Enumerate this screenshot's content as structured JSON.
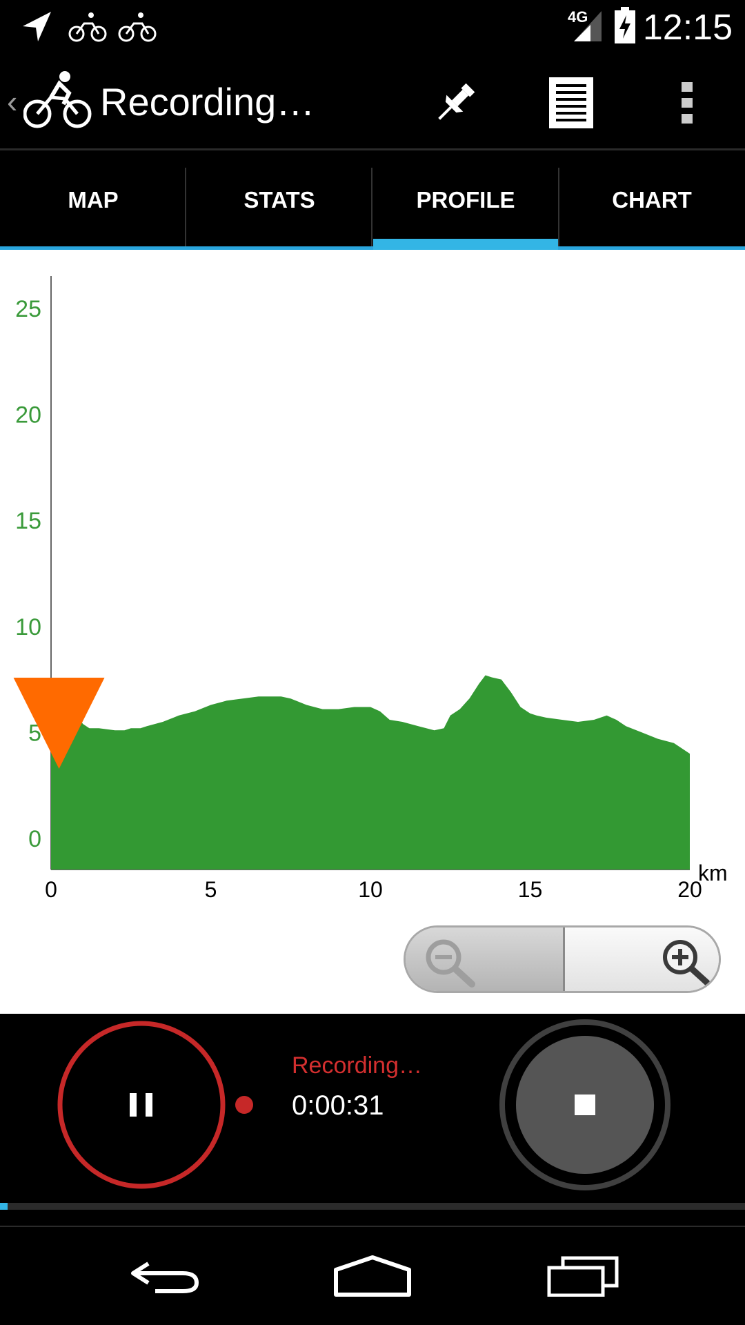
{
  "status_bar": {
    "time": "12:15",
    "network": "4G",
    "icons": [
      "location-arrow-icon",
      "bike-notification-icon",
      "bike-notification-icon",
      "signal-icon",
      "battery-charging-icon"
    ]
  },
  "action_bar": {
    "title": "Recording…",
    "app_icon": "cyclist-icon",
    "actions": [
      "pin-icon",
      "list-icon",
      "overflow-menu-icon"
    ]
  },
  "tabs": [
    {
      "label": "MAP",
      "selected": false
    },
    {
      "label": "STATS",
      "selected": false
    },
    {
      "label": "PROFILE",
      "selected": true
    },
    {
      "label": "CHART",
      "selected": false
    }
  ],
  "chart_data": {
    "type": "area",
    "x_unit": "km",
    "xlim": [
      0,
      20
    ],
    "ylim": [
      0,
      25
    ],
    "x_ticks": [
      "0",
      "5",
      "10",
      "15",
      "20"
    ],
    "y_ticks": [
      "0",
      "5",
      "10",
      "15",
      "20",
      "25"
    ],
    "x": [
      0,
      0.25,
      0.5,
      0.75,
      0.85,
      1.0,
      1.2,
      1.5,
      2.0,
      2.3,
      2.5,
      2.8,
      3.0,
      3.5,
      4.0,
      4.5,
      5.0,
      5.5,
      6.0,
      6.5,
      7.0,
      7.2,
      7.5,
      8.0,
      8.5,
      9.0,
      9.5,
      10.0,
      10.3,
      10.6,
      11.0,
      11.5,
      12.0,
      12.3,
      12.5,
      12.8,
      13.1,
      13.4,
      13.6,
      13.8,
      14.1,
      14.4,
      14.7,
      15.0,
      15.2,
      15.5,
      16.0,
      16.5,
      17.0,
      17.4,
      17.7,
      18.0,
      18.5,
      19.0,
      19.5,
      20.0
    ],
    "values": [
      4.0,
      4.5,
      5.1,
      5.4,
      5.7,
      5.4,
      5.2,
      5.2,
      5.1,
      5.1,
      5.2,
      5.2,
      5.3,
      5.5,
      5.8,
      6.0,
      6.3,
      6.5,
      6.6,
      6.7,
      6.7,
      6.7,
      6.6,
      6.3,
      6.1,
      6.1,
      6.2,
      6.2,
      6.0,
      5.6,
      5.5,
      5.3,
      5.1,
      5.2,
      5.8,
      6.1,
      6.6,
      7.3,
      7.7,
      7.6,
      7.5,
      6.9,
      6.2,
      5.9,
      5.8,
      5.7,
      5.6,
      5.5,
      5.6,
      5.8,
      5.6,
      5.3,
      5.0,
      4.7,
      4.5,
      4.0
    ],
    "series_color": "#339933",
    "marker_color": "#ff6a00",
    "marker_x": 0.25,
    "grid": false
  },
  "zoom": {
    "zoom_out_icon": "zoom-out-icon",
    "zoom_in_icon": "zoom-in-icon",
    "zoom_out_enabled": false
  },
  "control_panel": {
    "status": "Recording…",
    "elapsed": "0:00:31",
    "pause_icon": "pause-icon",
    "stop_icon": "stop-icon",
    "record_color": "#c62828",
    "progress": 0.01
  },
  "nav_bar": {
    "icons": [
      "back-icon",
      "home-icon",
      "recent-apps-icon"
    ]
  }
}
